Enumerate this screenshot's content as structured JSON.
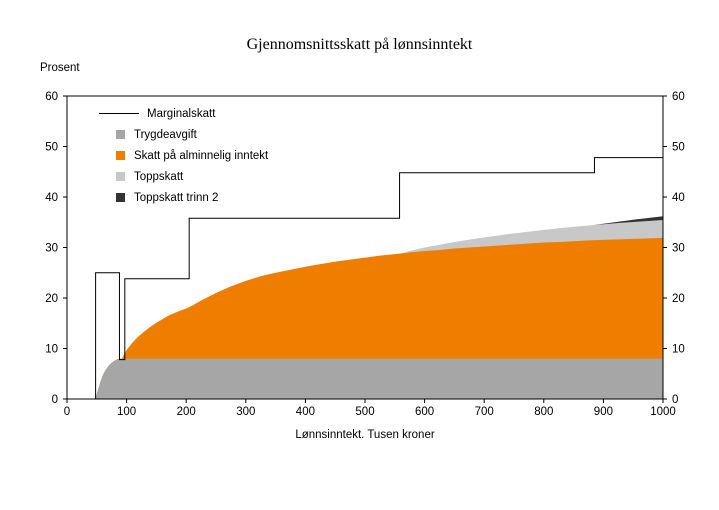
{
  "chart_data": {
    "type": "area",
    "title": "Gjennomsnittsskatt på lønnsinntekt",
    "y_unit_label": "Prosent",
    "xlabel": "Lønnsinntekt. Tusen kroner",
    "xlim": [
      0,
      1000
    ],
    "ylim": [
      0,
      60
    ],
    "x_ticks": [
      0,
      100,
      200,
      300,
      400,
      500,
      600,
      700,
      800,
      900,
      1000
    ],
    "y_ticks": [
      0,
      10,
      20,
      30,
      40,
      50,
      60
    ],
    "grid": false,
    "legend_position": "top-left-inside",
    "line_series": {
      "name": "Marginalskatt",
      "color": "#000000",
      "points": [
        [
          0,
          0
        ],
        [
          48,
          0
        ],
        [
          48,
          25
        ],
        [
          88,
          25
        ],
        [
          88,
          7.8
        ],
        [
          97,
          7.8
        ],
        [
          97,
          23.8
        ],
        [
          205,
          23.8
        ],
        [
          205,
          35.8
        ],
        [
          558,
          35.8
        ],
        [
          558,
          44.8
        ],
        [
          885,
          44.8
        ],
        [
          885,
          47.8
        ],
        [
          1000,
          47.8
        ]
      ]
    },
    "stacked_boundaries": [
      {
        "name": "Trygdeavgift",
        "color": "#a6a6a6",
        "cumulative_top": [
          [
            0,
            0
          ],
          [
            47,
            0
          ],
          [
            50,
            1.0
          ],
          [
            53,
            2.2
          ],
          [
            56,
            3.4
          ],
          [
            60,
            4.7
          ],
          [
            65,
            5.8
          ],
          [
            70,
            6.6
          ],
          [
            75,
            7.2
          ],
          [
            80,
            7.6
          ],
          [
            85,
            7.9
          ],
          [
            92,
            8.0
          ],
          [
            1000,
            8.0
          ]
        ]
      },
      {
        "name": "Skatt på alminnelig inntekt",
        "color": "#ef7d00",
        "cumulative_top": [
          [
            0,
            0
          ],
          [
            47,
            0
          ],
          [
            50,
            1.0
          ],
          [
            53,
            2.2
          ],
          [
            56,
            3.4
          ],
          [
            60,
            4.7
          ],
          [
            65,
            5.8
          ],
          [
            70,
            6.6
          ],
          [
            75,
            7.2
          ],
          [
            80,
            7.6
          ],
          [
            85,
            7.9
          ],
          [
            92,
            8.0
          ],
          [
            100,
            9.7
          ],
          [
            110,
            11.2
          ],
          [
            120,
            12.4
          ],
          [
            130,
            13.4
          ],
          [
            140,
            14.3
          ],
          [
            150,
            15.1
          ],
          [
            160,
            15.8
          ],
          [
            170,
            16.5
          ],
          [
            180,
            17.0
          ],
          [
            190,
            17.5
          ],
          [
            200,
            17.9
          ],
          [
            210,
            18.5
          ],
          [
            225,
            19.5
          ],
          [
            250,
            21.0
          ],
          [
            275,
            22.3
          ],
          [
            300,
            23.4
          ],
          [
            325,
            24.3
          ],
          [
            350,
            25.0
          ],
          [
            375,
            25.6
          ],
          [
            400,
            26.2
          ],
          [
            425,
            26.7
          ],
          [
            450,
            27.2
          ],
          [
            475,
            27.6
          ],
          [
            500,
            28.0
          ],
          [
            525,
            28.4
          ],
          [
            550,
            28.7
          ],
          [
            575,
            29.0
          ],
          [
            600,
            29.3
          ],
          [
            625,
            29.5
          ],
          [
            650,
            29.8
          ],
          [
            675,
            30.0
          ],
          [
            700,
            30.2
          ],
          [
            725,
            30.4
          ],
          [
            750,
            30.6
          ],
          [
            775,
            30.8
          ],
          [
            800,
            31.0
          ],
          [
            825,
            31.1
          ],
          [
            850,
            31.25
          ],
          [
            875,
            31.4
          ],
          [
            900,
            31.5
          ],
          [
            925,
            31.6
          ],
          [
            950,
            31.7
          ],
          [
            975,
            31.8
          ],
          [
            1000,
            31.9
          ]
        ]
      },
      {
        "name": "Toppskatt",
        "color": "#c8c8c8",
        "cumulative_top": [
          [
            558,
            28.75
          ],
          [
            575,
            29.3
          ],
          [
            600,
            30.0
          ],
          [
            625,
            30.55
          ],
          [
            650,
            31.1
          ],
          [
            675,
            31.55
          ],
          [
            700,
            32.0
          ],
          [
            725,
            32.4
          ],
          [
            750,
            32.8
          ],
          [
            775,
            33.15
          ],
          [
            800,
            33.5
          ],
          [
            825,
            33.8
          ],
          [
            850,
            34.1
          ],
          [
            875,
            34.35
          ],
          [
            900,
            34.6
          ],
          [
            925,
            34.85
          ],
          [
            950,
            35.05
          ],
          [
            975,
            35.25
          ],
          [
            1000,
            35.45
          ]
        ]
      },
      {
        "name": "Toppskatt trinn 2",
        "color": "#333333",
        "cumulative_top": [
          [
            885,
            34.45
          ],
          [
            900,
            34.7
          ],
          [
            925,
            35.1
          ],
          [
            950,
            35.5
          ],
          [
            975,
            35.85
          ],
          [
            1000,
            36.2
          ]
        ]
      }
    ],
    "legend": [
      {
        "label": "Marginalskatt",
        "marker": "line",
        "color": "#000000"
      },
      {
        "label": "Trygdeavgift",
        "marker": "square",
        "color": "#a6a6a6"
      },
      {
        "label": "Skatt på alminnelig inntekt",
        "marker": "square",
        "color": "#ef7d00"
      },
      {
        "label": "Toppskatt",
        "marker": "square",
        "color": "#c8c8c8"
      },
      {
        "label": "Toppskatt trinn 2",
        "marker": "square",
        "color": "#333333"
      }
    ]
  }
}
